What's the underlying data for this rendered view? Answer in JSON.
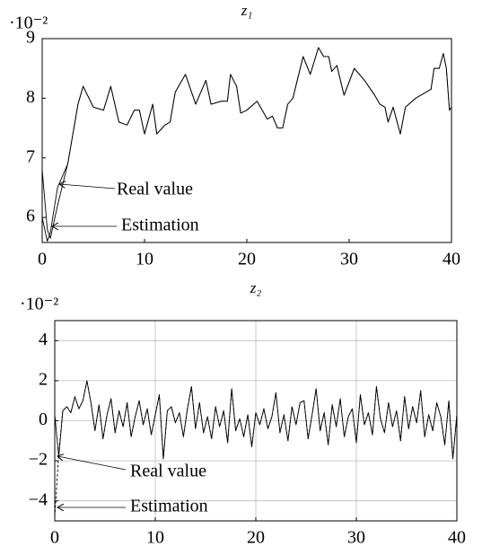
{
  "chart_data": [
    {
      "type": "line",
      "title": "z₁",
      "y_scale_label": "·10⁻²",
      "grid": false,
      "x": [
        0,
        0.5,
        0.8,
        1.5,
        2.5,
        3.5,
        4,
        5,
        6,
        6.7,
        7.5,
        8.3,
        9,
        9.5,
        10,
        10.8,
        11.2,
        12,
        12.5,
        13,
        14,
        15,
        16,
        16.5,
        17.5,
        18.1,
        18.4,
        19,
        19.4,
        20,
        21,
        22,
        22.5,
        23,
        23.5,
        24,
        24.5,
        25.5,
        26.2,
        27,
        27.5,
        28,
        28.3,
        28.8,
        29.5,
        30.5,
        31.5,
        32.5,
        33,
        33.5,
        33.8,
        34.3,
        35,
        35.5,
        36.5,
        38,
        38.3,
        38.8,
        39.2,
        39.5,
        39.8,
        40
      ],
      "series": [
        {
          "name": "Real value",
          "color": "#000000",
          "dash": false,
          "values": [
            6.8,
            5.8,
            5.65,
            6.2,
            6.9,
            7.9,
            8.2,
            7.85,
            7.8,
            8.2,
            7.6,
            7.55,
            7.8,
            7.8,
            7.4,
            7.9,
            7.4,
            7.55,
            7.6,
            8.1,
            8.4,
            7.9,
            8.3,
            7.9,
            7.95,
            7.95,
            8.4,
            8.2,
            7.75,
            7.8,
            7.95,
            7.65,
            7.7,
            7.5,
            7.5,
            7.9,
            8.0,
            8.7,
            8.4,
            8.85,
            8.7,
            8.7,
            8.45,
            8.55,
            8.05,
            8.5,
            8.3,
            8.05,
            7.9,
            7.85,
            7.6,
            7.85,
            7.4,
            7.85,
            8.0,
            8.15,
            8.5,
            8.5,
            8.75,
            8.5,
            7.8,
            7.85
          ]
        },
        {
          "name": "Estimation",
          "color": "#000000",
          "dash": false,
          "values": [
            6.0,
            5.6,
            5.75,
            6.5,
            6.9,
            7.9,
            8.2,
            7.85,
            7.8,
            8.2,
            7.6,
            7.55,
            7.8,
            7.8,
            7.4,
            7.9,
            7.4,
            7.55,
            7.6,
            8.1,
            8.4,
            7.9,
            8.3,
            7.9,
            7.95,
            7.95,
            8.4,
            8.2,
            7.75,
            7.8,
            7.95,
            7.65,
            7.7,
            7.5,
            7.5,
            7.9,
            8.0,
            8.7,
            8.4,
            8.85,
            8.7,
            8.7,
            8.45,
            8.55,
            8.05,
            8.5,
            8.3,
            8.05,
            7.9,
            7.85,
            7.6,
            7.85,
            7.4,
            7.85,
            8.0,
            8.15,
            8.5,
            8.5,
            8.75,
            8.5,
            7.8,
            7.85
          ]
        }
      ],
      "xlim": [
        0,
        40
      ],
      "xticks": [
        0,
        10,
        20,
        30,
        40
      ],
      "ylim": [
        5.58,
        9
      ],
      "yticks": [
        6,
        7,
        8,
        9
      ]
    },
    {
      "type": "line",
      "title": "z₂",
      "y_scale_label": "·10⁻²",
      "grid": true,
      "x": [
        0,
        0.4,
        0.8,
        1.2,
        1.6,
        2,
        2.4,
        2.8,
        3.2,
        3.6,
        4,
        4.4,
        4.8,
        5.2,
        5.6,
        6,
        6.4,
        6.8,
        7.2,
        7.6,
        8,
        8.4,
        8.8,
        9.2,
        9.6,
        10,
        10.4,
        10.8,
        11.2,
        11.6,
        12,
        12.4,
        12.8,
        13.2,
        13.6,
        14,
        14.4,
        14.8,
        15.2,
        15.6,
        16,
        16.4,
        16.8,
        17.2,
        17.6,
        18,
        18.4,
        18.8,
        19.2,
        19.6,
        20,
        20.4,
        20.8,
        21.2,
        21.6,
        22,
        22.4,
        22.8,
        23.2,
        23.6,
        24,
        24.4,
        24.8,
        25.2,
        25.6,
        26,
        26.4,
        26.8,
        27.2,
        27.6,
        28,
        28.4,
        28.8,
        29.2,
        29.6,
        30,
        30.4,
        30.8,
        31.2,
        31.6,
        32,
        32.4,
        32.8,
        33.2,
        33.6,
        34,
        34.4,
        34.8,
        35.2,
        35.6,
        36,
        36.4,
        36.8,
        37.2,
        37.6,
        38,
        38.4,
        38.8,
        39.2,
        39.6,
        40
      ],
      "series": [
        {
          "name": "Real value",
          "color": "#000000",
          "dash": false,
          "values": [
            0.3,
            -1.8,
            0.5,
            0.7,
            0.4,
            1.2,
            0.6,
            1.0,
            2.0,
            0.9,
            -0.5,
            0.8,
            -0.9,
            0.3,
            1.1,
            -0.6,
            0.5,
            -0.3,
            0.9,
            -0.8,
            0.2,
            1.0,
            -0.2,
            0.6,
            -0.7,
            0.3,
            1.3,
            -1.9,
            0.5,
            0.7,
            -0.1,
            0.4,
            -0.8,
            0.6,
            1.7,
            -0.4,
            0.9,
            -0.6,
            0.2,
            -0.9,
            0.7,
            -0.3,
            0.5,
            -1.1,
            1.6,
            -0.5,
            0.1,
            -0.8,
            0.3,
            -1.3,
            0.4,
            -0.2,
            0.6,
            -0.4,
            0.2,
            1.4,
            -0.6,
            0.3,
            -1.0,
            0.7,
            -0.2,
            0.9,
            1.0,
            -0.9,
            0.3,
            1.6,
            -0.5,
            0.4,
            -1.2,
            0.8,
            -0.3,
            1.1,
            -0.8,
            0.2,
            0.6,
            -1.1,
            1.3,
            -0.2,
            0.4,
            -0.7,
            1.7,
            0.1,
            -0.6,
            0.9,
            -0.3,
            0.5,
            -1.0,
            1.2,
            -0.4,
            0.7,
            -0.1,
            1.5,
            -0.8,
            0.3,
            -0.5,
            0.9,
            0.2,
            -1.2,
            1.0,
            -1.9,
            0.3
          ]
        },
        {
          "name": "Estimation",
          "color": "#000000",
          "dash": true,
          "values": [
            -4.8,
            -1.6,
            0.5,
            0.7,
            0.4,
            1.2,
            0.6,
            1.0,
            2.0,
            0.9,
            -0.5,
            0.8,
            -0.9,
            0.3,
            1.1,
            -0.6,
            0.5,
            -0.3,
            0.9,
            -0.8,
            0.2,
            1.0,
            -0.2,
            0.6,
            -0.7,
            0.3,
            1.3,
            -1.9,
            0.5,
            0.7,
            -0.1,
            0.4,
            -0.8,
            0.6,
            1.7,
            -0.4,
            0.9,
            -0.6,
            0.2,
            -0.9,
            0.7,
            -0.3,
            0.5,
            -1.1,
            1.6,
            -0.5,
            0.1,
            -0.8,
            0.3,
            -1.3,
            0.4,
            -0.2,
            0.6,
            -0.4,
            0.2,
            1.4,
            -0.6,
            0.3,
            -1.0,
            0.7,
            -0.2,
            0.9,
            1.0,
            -0.9,
            0.3,
            1.6,
            -0.5,
            0.4,
            -1.2,
            0.8,
            -0.3,
            1.1,
            -0.8,
            0.2,
            0.6,
            -1.1,
            1.3,
            -0.2,
            0.4,
            -0.7,
            1.7,
            0.1,
            -0.6,
            0.9,
            -0.3,
            0.5,
            -1.0,
            1.2,
            -0.4,
            0.7,
            -0.1,
            1.5,
            -0.8,
            0.3,
            -0.5,
            0.9,
            0.2,
            -1.2,
            1.0,
            -1.9,
            0.3
          ]
        }
      ],
      "xlim": [
        0,
        40
      ],
      "xticks": [
        0,
        10,
        20,
        30,
        40
      ],
      "ylim": [
        -5,
        5
      ],
      "yticks": [
        {
          "value": -4,
          "label": "−4"
        },
        {
          "value": -2,
          "label": "−2"
        },
        0,
        2,
        4
      ]
    }
  ]
}
